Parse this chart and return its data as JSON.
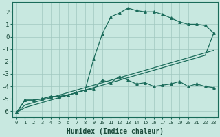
{
  "xlabel": "Humidex (Indice chaleur)",
  "bg_color": "#c8e8e0",
  "grid_color": "#a0c8c0",
  "line_color": "#1a6b5a",
  "xlim": [
    -0.5,
    23.5
  ],
  "ylim": [
    -6.5,
    2.8
  ],
  "yticks": [
    2,
    1,
    0,
    -1,
    -2,
    -3,
    -4,
    -5,
    -6
  ],
  "xticks": [
    0,
    1,
    2,
    3,
    4,
    5,
    6,
    7,
    8,
    9,
    10,
    11,
    12,
    13,
    14,
    15,
    16,
    17,
    18,
    19,
    20,
    21,
    22,
    23
  ],
  "wavy_x": [
    0,
    1,
    2,
    3,
    4,
    5,
    6,
    7,
    8,
    9,
    10,
    11,
    12,
    13,
    14,
    15,
    16,
    17,
    18,
    19,
    20,
    21,
    22,
    23
  ],
  "wavy_y": [
    -6.1,
    -5.1,
    -5.1,
    -5.0,
    -4.8,
    -4.8,
    -4.7,
    -4.5,
    -4.3,
    -4.2,
    -3.5,
    -3.7,
    -3.2,
    -3.5,
    -3.8,
    -3.7,
    -4.0,
    -3.9,
    -3.8,
    -3.6,
    -4.0,
    -3.8,
    -4.0,
    -4.1
  ],
  "upper_x": [
    0,
    1,
    2,
    3,
    4,
    5,
    6,
    7,
    8,
    9,
    10,
    11,
    12,
    13,
    14,
    15,
    16,
    17,
    18,
    19,
    20,
    21,
    22,
    23
  ],
  "upper_y": [
    -6.1,
    -5.1,
    -5.1,
    -5.0,
    -4.8,
    -4.8,
    -4.7,
    -4.5,
    -4.3,
    -1.8,
    0.2,
    1.6,
    1.9,
    2.3,
    2.1,
    2.0,
    2.0,
    1.8,
    1.5,
    1.2,
    1.0,
    1.0,
    0.9,
    0.3
  ],
  "lower_x": [
    0,
    1,
    2,
    3,
    4,
    5,
    6,
    7,
    8,
    9,
    10,
    11,
    12,
    13,
    14,
    15,
    16,
    17,
    18,
    19,
    20,
    21,
    22,
    23
  ],
  "lower_y": [
    -6.1,
    -5.5,
    -5.3,
    -5.1,
    -4.9,
    -4.7,
    -4.5,
    -4.3,
    -4.1,
    -3.9,
    -3.7,
    -3.5,
    -3.3,
    -3.1,
    -2.9,
    -2.7,
    -2.5,
    -2.3,
    -2.1,
    -1.9,
    -1.7,
    -1.5,
    -1.3,
    -1.1
  ],
  "lower2_x": [
    0,
    1,
    2,
    3,
    4,
    5,
    6,
    7,
    8,
    9,
    10,
    11,
    12,
    13,
    14,
    15,
    16,
    17,
    18,
    19,
    20,
    21,
    22,
    23
  ],
  "lower2_y": [
    -6.1,
    -5.7,
    -5.5,
    -5.3,
    -5.1,
    -4.9,
    -4.7,
    -4.5,
    -4.3,
    -4.1,
    -3.9,
    -3.7,
    -3.5,
    -3.3,
    -3.1,
    -2.9,
    -2.7,
    -2.5,
    -2.3,
    -2.1,
    -1.9,
    -1.7,
    -1.5,
    0.3
  ]
}
